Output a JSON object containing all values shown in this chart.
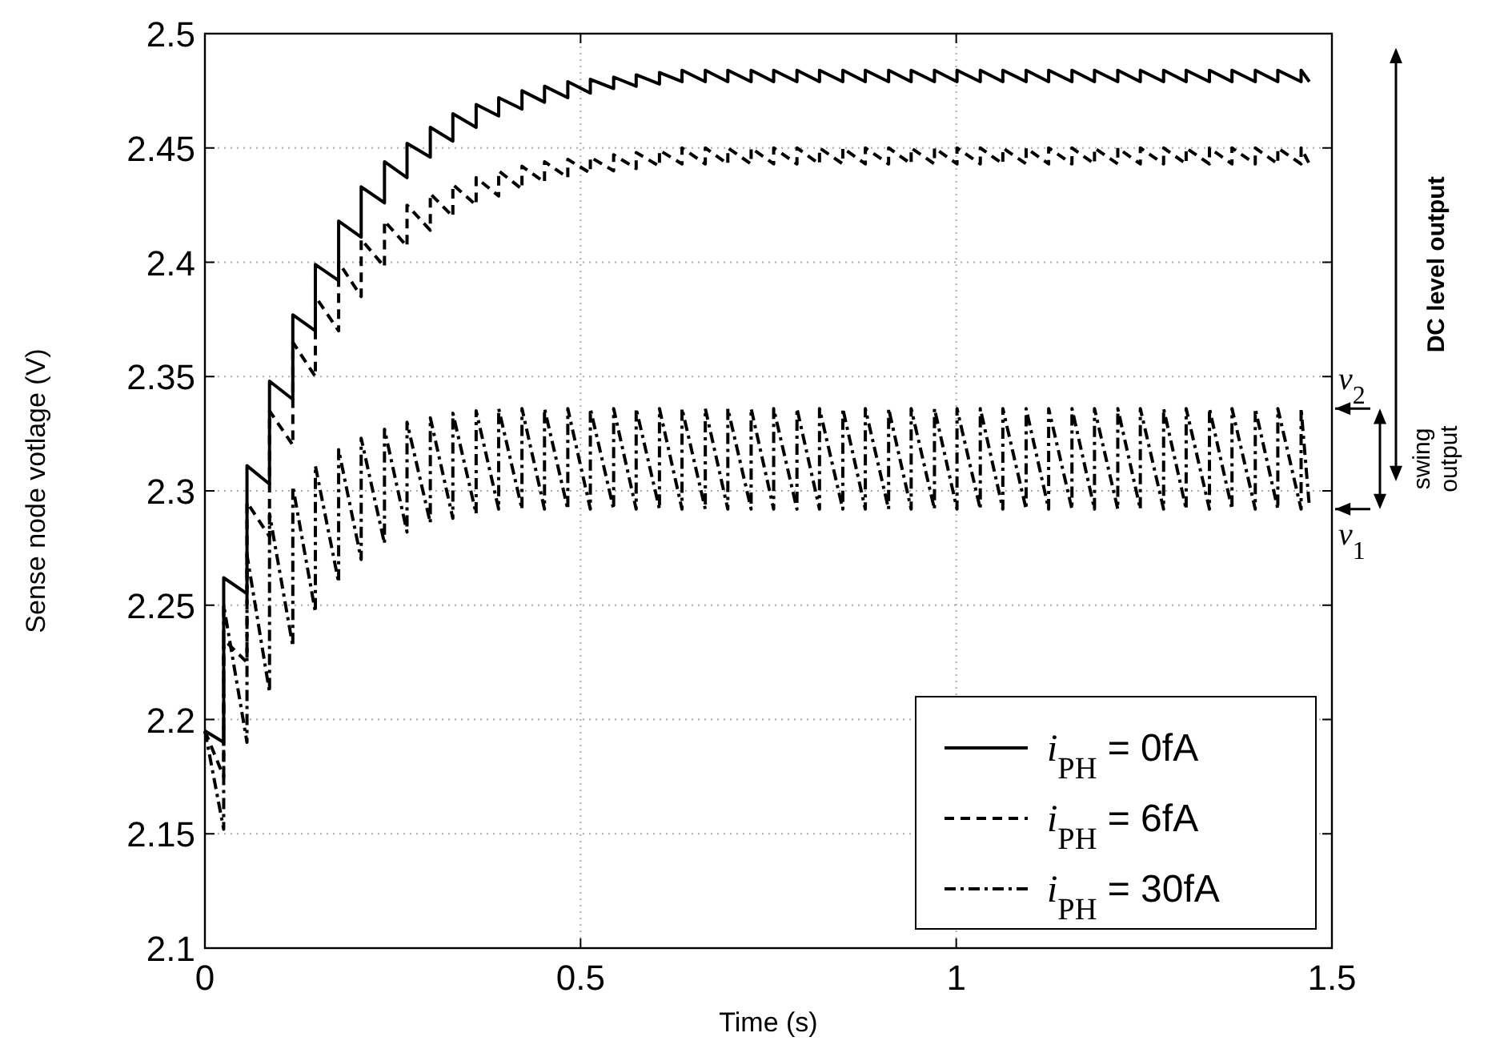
{
  "chart_data": {
    "type": "line",
    "xlabel": "Time (s)",
    "ylabel": "Sense node votlage (V)",
    "x": [
      0,
      0.025,
      0.025,
      0.056,
      0.056,
      0.086,
      0.086,
      0.117,
      0.117,
      0.147,
      0.147,
      0.178,
      0.178,
      0.208,
      0.208,
      0.239,
      0.239,
      0.269,
      0.269,
      0.3,
      0.3,
      0.33,
      0.33,
      0.361,
      0.361,
      0.391,
      0.391,
      0.422,
      0.422,
      0.452,
      0.452,
      0.483,
      0.483,
      0.513,
      0.513,
      0.544,
      0.544,
      0.574,
      0.574,
      0.605,
      0.605,
      0.635,
      0.635,
      0.666,
      0.666,
      0.696,
      0.696,
      0.727,
      0.727,
      0.757,
      0.757,
      0.788,
      0.788,
      0.818,
      0.818,
      0.849,
      0.849,
      0.879,
      0.879,
      0.91,
      0.91,
      0.94,
      0.94,
      0.971,
      0.971,
      1.001,
      1.001,
      1.032,
      1.032,
      1.062,
      1.062,
      1.093,
      1.093,
      1.123,
      1.123,
      1.154,
      1.154,
      1.184,
      1.184,
      1.215,
      1.215,
      1.245,
      1.245,
      1.276,
      1.276,
      1.306,
      1.306,
      1.337,
      1.337,
      1.367,
      1.367,
      1.398,
      1.398,
      1.428,
      1.428,
      1.459,
      1.459,
      1.47
    ],
    "series": [
      {
        "name": "i$_{PH}$ = 0fA",
        "color": "#000000",
        "line_style": "solid",
        "values": [
          2.195,
          2.19,
          2.262,
          2.255,
          2.311,
          2.303,
          2.348,
          2.34,
          2.377,
          2.37,
          2.399,
          2.392,
          2.418,
          2.411,
          2.433,
          2.426,
          2.444,
          2.437,
          2.452,
          2.446,
          2.459,
          2.453,
          2.465,
          2.459,
          2.469,
          2.464,
          2.472,
          2.467,
          2.475,
          2.47,
          2.477,
          2.472,
          2.479,
          2.474,
          2.48,
          2.476,
          2.481,
          2.477,
          2.482,
          2.478,
          2.483,
          2.479,
          2.484,
          2.479,
          2.484,
          2.479,
          2.484,
          2.479,
          2.484,
          2.479,
          2.484,
          2.479,
          2.484,
          2.479,
          2.484,
          2.479,
          2.484,
          2.479,
          2.484,
          2.479,
          2.484,
          2.479,
          2.484,
          2.479,
          2.484,
          2.479,
          2.484,
          2.479,
          2.484,
          2.479,
          2.484,
          2.479,
          2.484,
          2.479,
          2.484,
          2.479,
          2.484,
          2.479,
          2.484,
          2.479,
          2.484,
          2.479,
          2.484,
          2.479,
          2.484,
          2.479,
          2.484,
          2.479,
          2.484,
          2.479,
          2.484,
          2.479,
          2.484,
          2.479,
          2.484,
          2.479,
          2.484,
          2.479
        ]
      },
      {
        "name": "i$_{PH}$ = 6fA",
        "color": "#000000",
        "line_style": "dashed",
        "values": [
          2.195,
          2.175,
          2.235,
          2.225,
          2.295,
          2.28,
          2.335,
          2.32,
          2.365,
          2.35,
          2.385,
          2.37,
          2.4,
          2.385,
          2.41,
          2.398,
          2.418,
          2.407,
          2.425,
          2.414,
          2.43,
          2.42,
          2.434,
          2.425,
          2.437,
          2.429,
          2.44,
          2.432,
          2.442,
          2.435,
          2.444,
          2.437,
          2.445,
          2.439,
          2.446,
          2.44,
          2.447,
          2.441,
          2.448,
          2.442,
          2.449,
          2.443,
          2.45,
          2.443,
          2.45,
          2.443,
          2.45,
          2.443,
          2.45,
          2.443,
          2.45,
          2.443,
          2.45,
          2.443,
          2.45,
          2.443,
          2.45,
          2.443,
          2.45,
          2.443,
          2.45,
          2.443,
          2.45,
          2.443,
          2.45,
          2.443,
          2.45,
          2.443,
          2.45,
          2.443,
          2.45,
          2.443,
          2.45,
          2.443,
          2.45,
          2.443,
          2.45,
          2.443,
          2.45,
          2.443,
          2.45,
          2.443,
          2.45,
          2.443,
          2.45,
          2.443,
          2.45,
          2.443,
          2.45,
          2.443,
          2.45,
          2.443,
          2.45,
          2.443,
          2.45,
          2.443,
          2.45,
          2.443
        ]
      },
      {
        "name": "i$_{PH}$ = 30fA",
        "color": "#000000",
        "line_style": "dashdot",
        "values": [
          2.195,
          2.152,
          2.25,
          2.19,
          2.272,
          2.212,
          2.29,
          2.232,
          2.302,
          2.247,
          2.311,
          2.26,
          2.318,
          2.27,
          2.323,
          2.277,
          2.327,
          2.282,
          2.33,
          2.286,
          2.332,
          2.288,
          2.334,
          2.29,
          2.335,
          2.292,
          2.336,
          2.292,
          2.336,
          2.292,
          2.336,
          2.292,
          2.336,
          2.292,
          2.336,
          2.292,
          2.336,
          2.292,
          2.336,
          2.292,
          2.336,
          2.292,
          2.336,
          2.292,
          2.336,
          2.292,
          2.336,
          2.292,
          2.336,
          2.292,
          2.336,
          2.292,
          2.336,
          2.292,
          2.336,
          2.292,
          2.336,
          2.292,
          2.336,
          2.292,
          2.336,
          2.292,
          2.336,
          2.292,
          2.336,
          2.292,
          2.336,
          2.292,
          2.336,
          2.292,
          2.336,
          2.292,
          2.336,
          2.292,
          2.336,
          2.292,
          2.336,
          2.292,
          2.336,
          2.292,
          2.336,
          2.292,
          2.336,
          2.292,
          2.336,
          2.292,
          2.336,
          2.292,
          2.336,
          2.292,
          2.336,
          2.292,
          2.336,
          2.292,
          2.336,
          2.292,
          2.336,
          2.293
        ]
      }
    ],
    "xlim": [
      0,
      1.5
    ],
    "xticks": [
      0,
      0.5,
      1,
      1.5
    ],
    "ylim": [
      2.1,
      2.5
    ],
    "yticks": [
      2.1,
      2.15,
      2.2,
      2.25,
      2.3,
      2.35,
      2.4,
      2.45,
      2.5
    ],
    "grid": true,
    "legend": "bottom right",
    "annotations": [
      "v$_{2}$",
      "v$_{1}$",
      "DC level output",
      "swing output"
    ]
  }
}
